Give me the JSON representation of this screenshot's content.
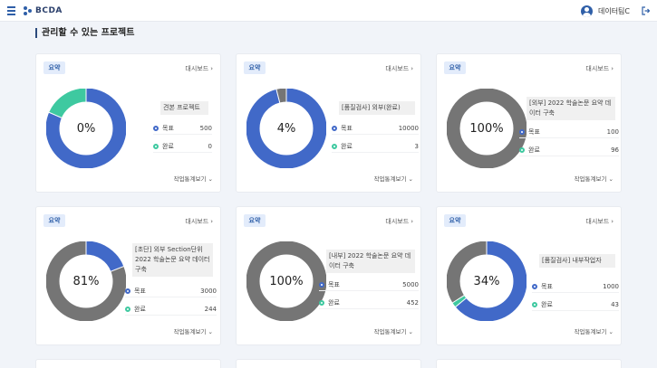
{
  "header": {
    "brand": "BCDA",
    "user_name": "데이터팀C"
  },
  "page_title": "관리할 수 있는 프로젝트",
  "colors": {
    "blue": "#4169c8",
    "teal": "#3ec9a0",
    "gray": "#757575"
  },
  "card_common": {
    "tag": "요약",
    "dashboard_link": "대시보드",
    "target_label": "목표",
    "done_label": "완료",
    "stats_toggle": "작업통계보기"
  },
  "cards": [
    {
      "name": "견본 프로젝트",
      "percent_label": "0%",
      "target": "500",
      "done": "0",
      "arcs": [
        {
          "color": "#4169c8",
          "fraction": 0.815
        },
        {
          "color": "#3ec9a0",
          "fraction": 0.185
        }
      ]
    },
    {
      "name": "[품질검사] 외부(완료)",
      "percent_label": "4%",
      "target": "10000",
      "done": "3",
      "arcs": [
        {
          "color": "#4169c8",
          "fraction": 0.96
        },
        {
          "color": "#757575",
          "fraction": 0.04
        }
      ]
    },
    {
      "name": "[외부] 2022 학술논문 요약 데이터 구축",
      "percent_label": "100%",
      "target": "100",
      "done": "96",
      "arcs": [
        {
          "color": "#757575",
          "fraction": 1.0
        }
      ]
    },
    {
      "name": "[초단] 외부 Section단위 2022 학술논문 요약 데이터 구축",
      "percent_label": "81%",
      "target": "3000",
      "done": "244",
      "arcs": [
        {
          "color": "#4169c8",
          "fraction": 0.19
        },
        {
          "color": "#757575",
          "fraction": 0.81
        }
      ]
    },
    {
      "name": "[내부] 2022 학술논문 요약 데이터 구축",
      "percent_label": "100%",
      "target": "5000",
      "done": "452",
      "arcs": [
        {
          "color": "#757575",
          "fraction": 1.0
        }
      ]
    },
    {
      "name": "[품질검사] 내부작업자",
      "percent_label": "34%",
      "target": "1000",
      "done": "43",
      "arcs": [
        {
          "color": "#4169c8",
          "fraction": 0.64
        },
        {
          "color": "#3ec9a0",
          "fraction": 0.02
        },
        {
          "color": "#757575",
          "fraction": 0.34
        }
      ]
    }
  ]
}
